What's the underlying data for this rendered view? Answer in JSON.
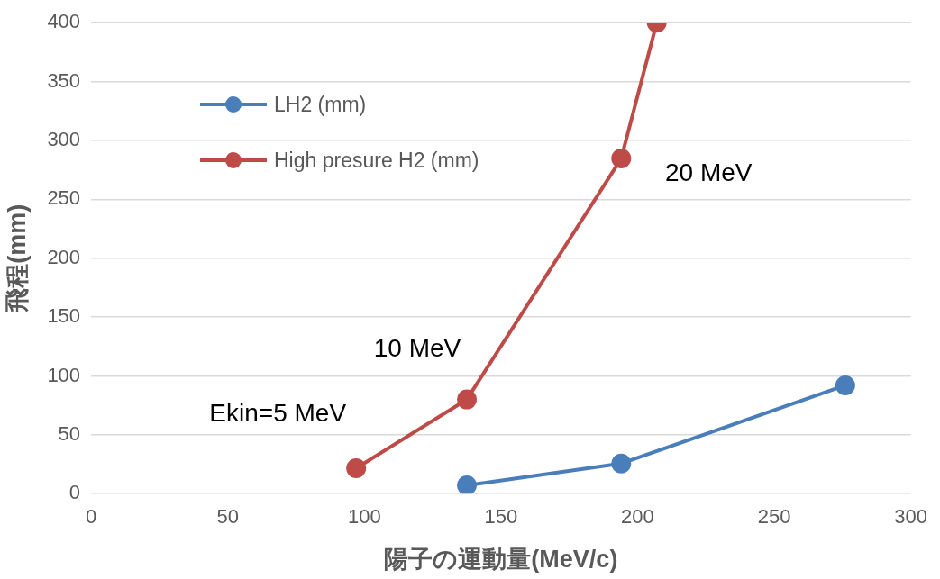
{
  "chart_data": {
    "type": "line",
    "xlabel": "陽子の運動量(MeV/c)",
    "ylabel": "飛程(mm)",
    "xlim": [
      0,
      300
    ],
    "xticks": [
      0,
      50,
      100,
      150,
      200,
      250,
      300
    ],
    "ylim": [
      0,
      400
    ],
    "yticks": [
      0,
      50,
      100,
      150,
      200,
      250,
      300,
      350,
      400
    ],
    "series": [
      {
        "name": "LH2 (mm)",
        "color": "#4a7ebb",
        "x": [
          137.5,
          194,
          276
        ],
        "values": [
          7,
          25.6,
          92
        ]
      },
      {
        "name": "High presure H2 (mm)",
        "color": "#be4b48",
        "x": [
          97,
          137.5,
          194,
          207
        ],
        "values": [
          21.6,
          80,
          284.6,
          400
        ]
      }
    ],
    "annotations": [
      {
        "text": "Ekin=5 MeV",
        "x": 97,
        "y": 21.6
      },
      {
        "text": "10 MeV",
        "x": 137.5,
        "y": 80
      },
      {
        "text": "20 MeV",
        "x": 194,
        "y": 284.6
      }
    ],
    "grid": "y",
    "legend": "top left",
    "marker": "circle",
    "line_style": "solid"
  }
}
